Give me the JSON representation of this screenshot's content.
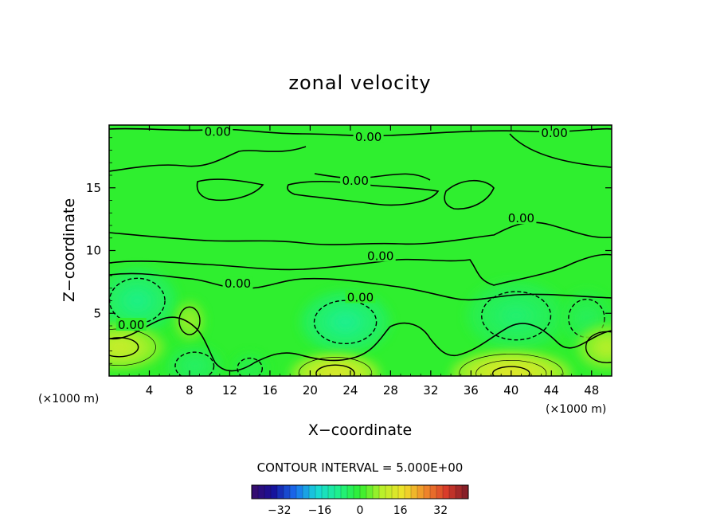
{
  "chart_data": {
    "type": "contour",
    "title": "zonal velocity",
    "xlabel": "X−coordinate",
    "ylabel": "Z−coordinate",
    "x_unit_label": "(×1000 m)",
    "x_unit_label_right": "(×1000 m)",
    "xlim": [
      0,
      50
    ],
    "ylim": [
      0,
      20
    ],
    "x_ticks": [
      "4",
      "8",
      "12",
      "16",
      "20",
      "24",
      "28",
      "32",
      "36",
      "40",
      "44",
      "48"
    ],
    "y_ticks": [
      "5",
      "10",
      "15"
    ],
    "contour_interval_text": "CONTOUR INTERVAL = 5.000E+00",
    "contour_labels": [
      {
        "text": "0.00",
        "x": 10.8,
        "y": 19.4
      },
      {
        "text": "0.00",
        "x": 25.8,
        "y": 19.0
      },
      {
        "text": "0.00",
        "x": 44.3,
        "y": 19.3
      },
      {
        "text": "0.00",
        "x": 24.5,
        "y": 15.5
      },
      {
        "text": "0.00",
        "x": 41.0,
        "y": 12.5
      },
      {
        "text": "0.00",
        "x": 27.0,
        "y": 9.5
      },
      {
        "text": "0.00",
        "x": 12.8,
        "y": 7.3
      },
      {
        "text": "0.00",
        "x": 25.0,
        "y": 6.2
      },
      {
        "text": "0.00",
        "x": 2.2,
        "y": 4.0
      }
    ],
    "anomalies": [
      {
        "x": 2.8,
        "y": 6.0,
        "rx": 4.0,
        "ry": 2.6,
        "value": -8
      },
      {
        "x": 23.5,
        "y": 4.3,
        "rx": 4.5,
        "ry": 2.5,
        "value": -9
      },
      {
        "x": 40.5,
        "y": 4.8,
        "rx": 5.0,
        "ry": 2.8,
        "value": -6
      },
      {
        "x": 47.5,
        "y": 4.6,
        "rx": 2.6,
        "ry": 2.2,
        "value": -4
      },
      {
        "x": 8.5,
        "y": 0.8,
        "rx": 2.8,
        "ry": 1.6,
        "value": -5
      },
      {
        "x": 14.0,
        "y": 0.6,
        "rx": 1.8,
        "ry": 1.2,
        "value": -3
      },
      {
        "x": 8.0,
        "y": 4.4,
        "rx": 1.5,
        "ry": 1.6,
        "value": 7
      },
      {
        "x": 1.0,
        "y": 2.3,
        "rx": 4.5,
        "ry": 1.8,
        "value": 11
      },
      {
        "x": 49.5,
        "y": 2.3,
        "rx": 3.0,
        "ry": 1.8,
        "value": 9
      },
      {
        "x": 22.5,
        "y": 0.2,
        "rx": 4.5,
        "ry": 1.6,
        "value": 14
      },
      {
        "x": 40.0,
        "y": 0.2,
        "rx": 6.0,
        "ry": 1.8,
        "value": 15
      }
    ],
    "colorbar": {
      "ticks": [
        "−32",
        "−16",
        "0",
        "16",
        "32"
      ],
      "tick_values": [
        -32,
        -16,
        0,
        16,
        32
      ],
      "range": [
        -43,
        43
      ],
      "bands": 34
    },
    "colors": {
      "neutral": "#2fef2f",
      "negative_ramp": [
        "#2fef2f",
        "#1ef08c",
        "#19d8d8",
        "#1a6cf0",
        "#16109a",
        "#3a0d6a"
      ],
      "positive_ramp": [
        "#2fef2f",
        "#b8f02a",
        "#f0e22a",
        "#f08a2a",
        "#d83a2a",
        "#7a1a28"
      ],
      "frame": "#000000"
    }
  }
}
